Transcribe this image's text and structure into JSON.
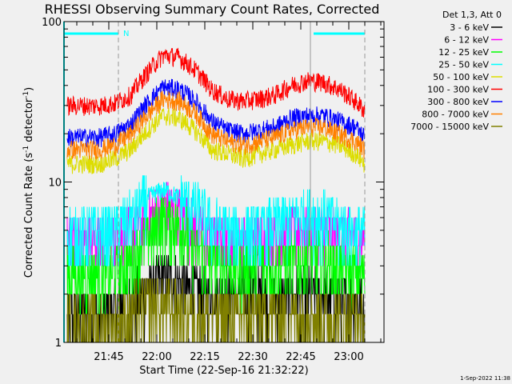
{
  "chart_data": {
    "type": "line",
    "title": "RHESSI Observing Summary Count Rates, Corrected",
    "xlabel": "Start Time (22-Sep-16 21:32:22)",
    "ylabel": "Corrected Count Rate (s",
    "ylabel_sup1": "-1",
    "ylabel_mid": " detector",
    "ylabel_sup2": "-1",
    "ylabel_end": ")",
    "yscale": "log",
    "ylim": [
      1,
      100
    ],
    "xlim": [
      "21:31",
      "23:11"
    ],
    "yticks": [
      "1",
      "10",
      "100"
    ],
    "xticks": [
      "21:45",
      "22:00",
      "22:15",
      "22:30",
      "22:45",
      "23:00"
    ],
    "legend_title": "Det 1,3, Att 0",
    "legend_position": "top-right-outside",
    "annotations": {
      "night_label": "N",
      "night_intervals": [
        [
          "21:31",
          "21:48"
        ],
        [
          "22:49",
          "23:05"
        ]
      ],
      "dashed_lines": [
        "21:48",
        "23:05"
      ],
      "solid_lines": [
        "22:48"
      ]
    },
    "footer_timestamp": "1-Sep-2022 11:38",
    "x": [
      "21:32",
      "21:37",
      "21:42",
      "21:47",
      "21:52",
      "21:57",
      "22:02",
      "22:07",
      "22:12",
      "22:17",
      "22:22",
      "22:27",
      "22:32",
      "22:37",
      "22:42",
      "22:47",
      "22:52",
      "22:57",
      "23:02",
      "23:05"
    ],
    "series": [
      {
        "name": "3 - 6 keV",
        "color": "#000000",
        "values": [
          1.5,
          1.5,
          1.5,
          1.6,
          1.8,
          2.2,
          2.5,
          2.4,
          2.1,
          2,
          2,
          2.1,
          2,
          1.9,
          2,
          2,
          2,
          1.9,
          1.8,
          1.6
        ]
      },
      {
        "name": "6 - 12 keV",
        "color": "#ff00ff",
        "values": [
          4.5,
          4.5,
          4.5,
          4.5,
          5,
          6,
          7,
          6.5,
          5.5,
          4.5,
          4.5,
          4.5,
          4.5,
          4.5,
          5,
          5,
          5,
          4.5,
          4.5,
          4.5
        ]
      },
      {
        "name": "12 - 25 keV",
        "color": "#00ff00",
        "values": [
          2.7,
          2.7,
          2.7,
          2.8,
          3.2,
          4.5,
          6,
          5.5,
          4,
          3.2,
          3,
          2.9,
          3,
          3,
          3.2,
          3.3,
          3.3,
          3,
          2.8,
          2.7
        ]
      },
      {
        "name": "25 - 50 keV",
        "color": "#00ffff",
        "values": [
          5,
          5,
          5,
          5,
          6,
          8,
          9,
          8,
          7,
          5.5,
          5,
          5,
          5,
          5.5,
          6,
          6.5,
          6,
          5.5,
          5,
          5
        ]
      },
      {
        "name": "50 - 100 keV",
        "color": "#dddd00",
        "values": [
          13,
          13,
          13,
          14,
          16,
          21,
          26,
          25,
          21,
          16,
          15,
          14,
          15,
          16,
          17,
          18,
          18,
          17,
          15,
          13
        ]
      },
      {
        "name": "100 - 300 keV",
        "color": "#ff0000",
        "values": [
          30,
          30,
          30,
          31,
          35,
          48,
          62,
          60,
          50,
          38,
          33,
          32,
          33,
          35,
          40,
          43,
          42,
          38,
          32,
          28
        ]
      },
      {
        "name": "300 - 800 keV",
        "color": "#0000ff",
        "values": [
          19,
          19,
          19,
          20,
          23,
          31,
          39,
          38,
          32,
          24,
          21,
          20,
          21,
          22,
          25,
          26,
          26,
          24,
          22,
          19
        ]
      },
      {
        "name": "800 - 7000 keV",
        "color": "#ff8000",
        "values": [
          16,
          16,
          16,
          17,
          20,
          26,
          33,
          32,
          27,
          20,
          18,
          17,
          18,
          19,
          21,
          22,
          22,
          20,
          18,
          16
        ]
      },
      {
        "name": "7000 - 15000 keV",
        "color": "#808000",
        "values": [
          1.3,
          1.3,
          1.3,
          1.3,
          1.5,
          1.8,
          1.7,
          1.6,
          1.5,
          1.5,
          1.5,
          1.5,
          1.5,
          1.5,
          1.5,
          1.5,
          1.5,
          1.4,
          1.4,
          1.3
        ]
      }
    ]
  }
}
